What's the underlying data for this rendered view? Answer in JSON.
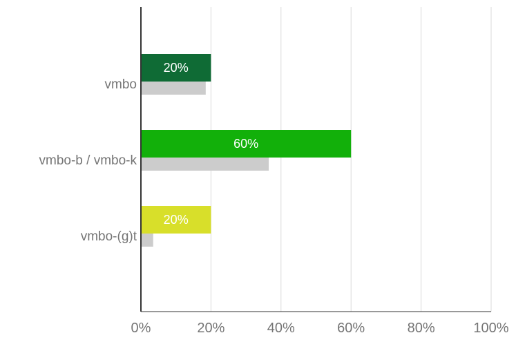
{
  "chart_data": {
    "type": "bar",
    "orientation": "horizontal",
    "categories": [
      "vmbo",
      "vmbo-b / vmbo-k",
      "vmbo-(g)t"
    ],
    "series": [
      {
        "values": [
          20,
          60,
          20
        ],
        "data_labels": [
          "20%",
          "60%",
          "20%"
        ],
        "colors": [
          "#0f6b35",
          "#12b00a",
          "#d8df2a"
        ]
      },
      {
        "values": [
          18.5,
          36.5,
          3.5
        ],
        "colors": [
          "#cccccc",
          "#cccccc",
          "#cccccc"
        ]
      }
    ],
    "xlim": [
      0,
      100
    ],
    "xticks": [
      "0%",
      "20%",
      "40%",
      "60%",
      "80%",
      "100%"
    ],
    "grid": true,
    "legend": "none",
    "title": "",
    "xlabel": "",
    "ylabel": ""
  }
}
